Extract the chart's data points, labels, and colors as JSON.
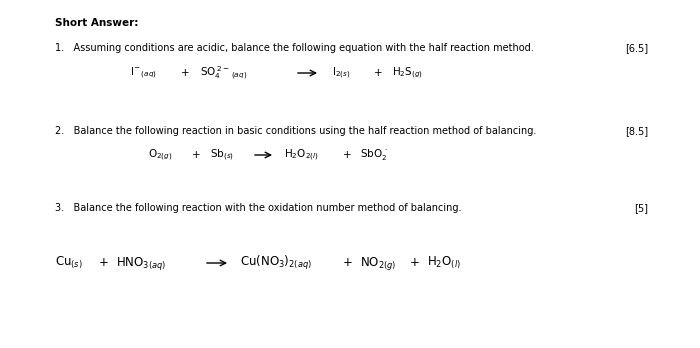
{
  "bg_color": "#ffffff",
  "title": "Short Answer:",
  "q1_text": "1.   Assuming conditions are acidic, balance the following equation with the half reaction method.",
  "q1_marks": "[6.5]",
  "q2_text": "2.   Balance the following reaction in basic conditions using the half reaction method of balancing.",
  "q2_marks": "[8.5]",
  "q3_text": "3.   Balance the following reaction with the oxidation number method of balancing.",
  "q3_marks": "[5]",
  "font_size_title": 7.5,
  "font_size_text": 7.0,
  "font_size_eq": 7.5
}
